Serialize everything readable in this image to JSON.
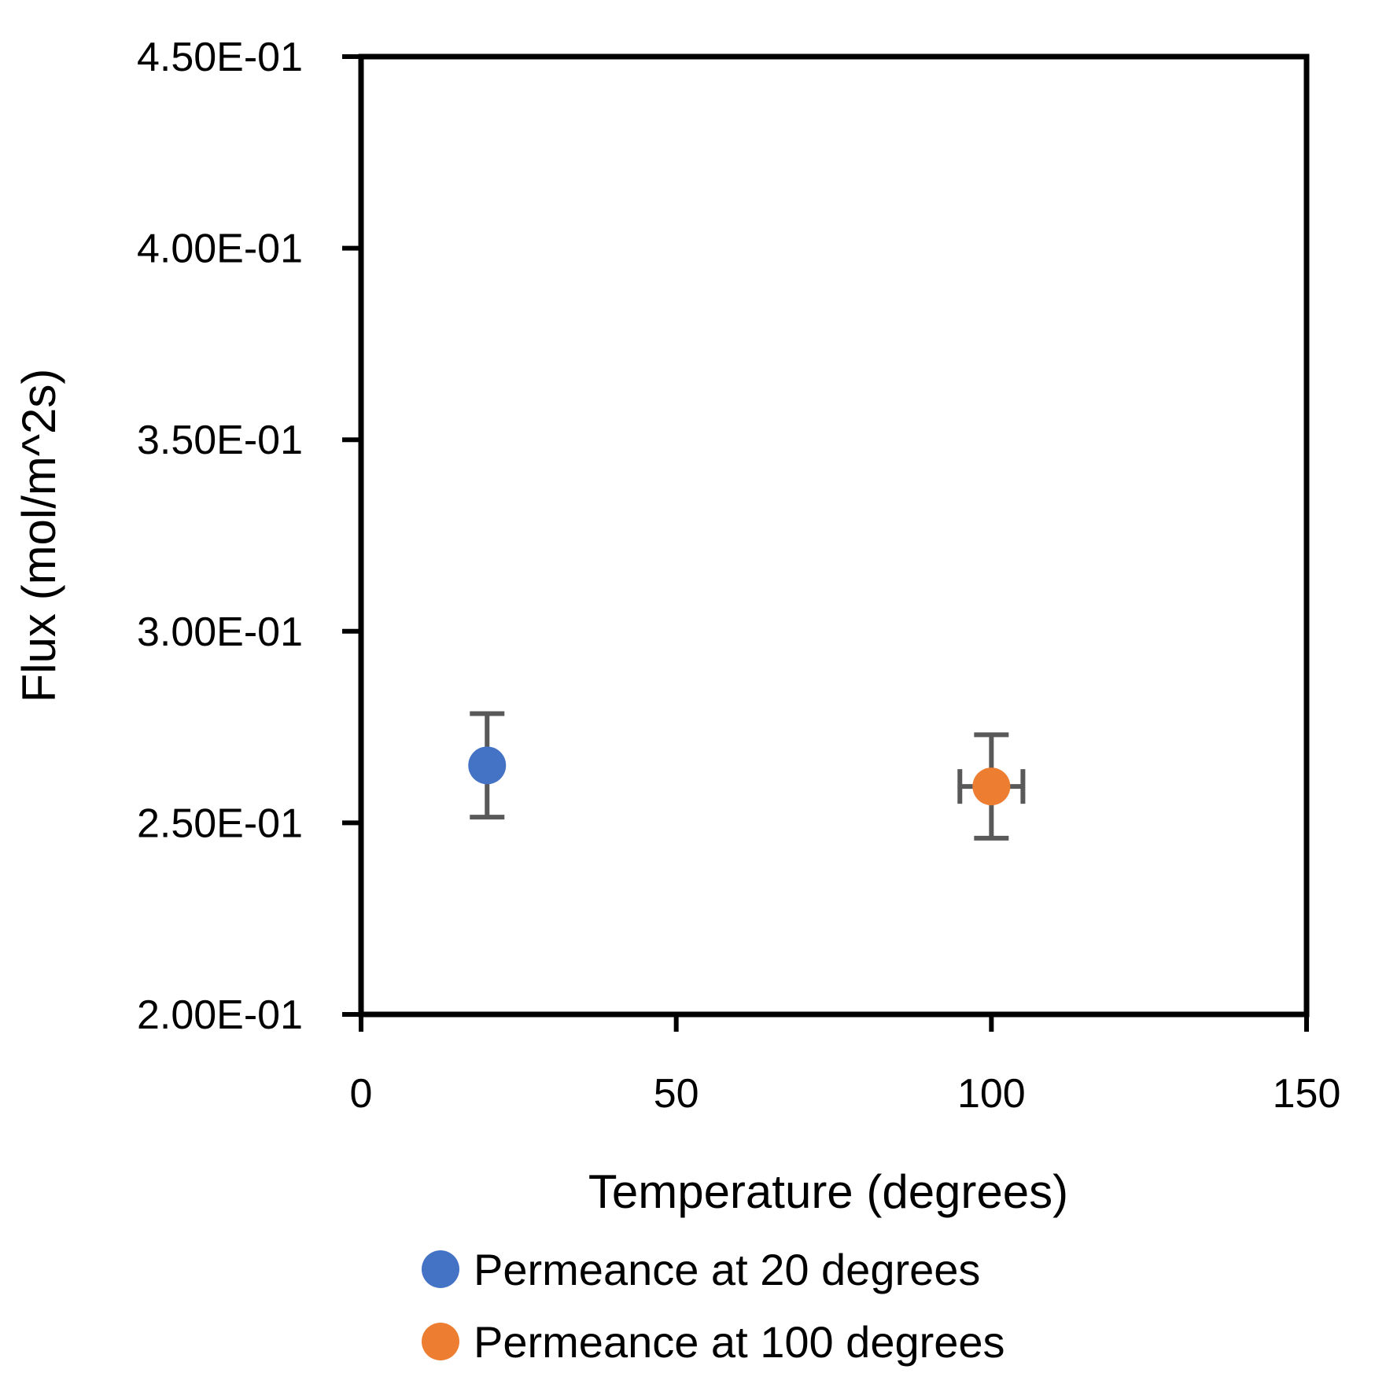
{
  "chart_data": {
    "type": "scatter",
    "xlabel": "Temperature (degrees)",
    "ylabel": "Flux (mol/m^2s)",
    "xlim": [
      0,
      150
    ],
    "ylim": [
      0.2,
      0.45
    ],
    "x_ticks": [
      "0",
      "50",
      "100",
      "150"
    ],
    "y_ticks": [
      "2.00E-01",
      "2.50E-01",
      "3.00E-01",
      "3.50E-01",
      "4.00E-01",
      "4.50E-01"
    ],
    "grid": false,
    "legend_position": "bottom",
    "series": [
      {
        "name": "Permeance at 20 degrees",
        "color": "#4472C4",
        "points": [
          {
            "x": 20,
            "y": 0.265,
            "y_err": 0.0135,
            "x_err": 0
          }
        ]
      },
      {
        "name": "Permeance at 100 degrees",
        "color": "#ED7D31",
        "points": [
          {
            "x": 100,
            "y": 0.2595,
            "y_err": 0.0135,
            "x_err": 5
          }
        ]
      }
    ],
    "error_bar_color": "#595959"
  }
}
